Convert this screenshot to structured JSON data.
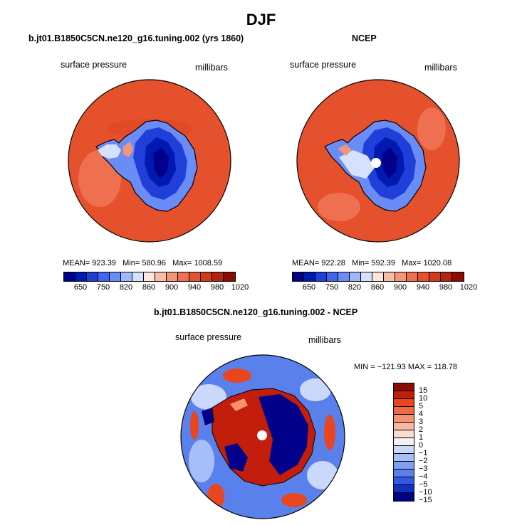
{
  "title": "DJF",
  "panels": [
    {
      "id": "model",
      "title": "b.jt01.B1850C5CN.ne120_g16.tuning.002 (yrs 1860)",
      "variable": "surface pressure",
      "units": "millibars",
      "stats": {
        "mean_label": "MEAN=",
        "mean": "923.39",
        "min_label": "Min=",
        "min": "580.96",
        "max_label": "Max=",
        "max": "1008.59"
      },
      "colorbar_ticks": [
        "650",
        "750",
        "820",
        "860",
        "900",
        "940",
        "980",
        "1020"
      ]
    },
    {
      "id": "ncep",
      "title": "NCEP",
      "variable": "surface pressure",
      "units": "millibars",
      "stats": {
        "mean_label": "MEAN=",
        "mean": "922.28",
        "min_label": "Min=",
        "min": "592.39",
        "max_label": "Max=",
        "max": "1020.08"
      },
      "colorbar_ticks": [
        "650",
        "750",
        "820",
        "860",
        "900",
        "940",
        "980",
        "1020"
      ]
    },
    {
      "id": "diff",
      "title": "b.jt01.B1850C5CN.ne120_g16.tuning.002 - NCEP",
      "variable": "surface pressure",
      "units": "millibars",
      "stats_text": "MIN = −121.93 MAX = 118.78",
      "colorbar_ticks": [
        "15",
        "10",
        "5",
        "4",
        "3",
        "2",
        "1",
        "0",
        "−1",
        "−2",
        "−3",
        "−4",
        "−5",
        "−10",
        "−15"
      ]
    }
  ],
  "colors": {
    "abs_scale": [
      "#00008a",
      "#0019b0",
      "#1f3fd8",
      "#3f66ee",
      "#6a8cf6",
      "#9fb8fb",
      "#d6e2fd",
      "#fde7dc",
      "#f8bda6",
      "#f39578",
      "#ef7050",
      "#e5512d",
      "#d13a1b",
      "#b3230e",
      "#8a0c04"
    ],
    "diff_scale": [
      "#8a0c04",
      "#c21e0b",
      "#e8461f",
      "#ef6a43",
      "#f59274",
      "#f9b79f",
      "#fcdccf",
      "#f2f2f2",
      "#c9d8fb",
      "#a7bff8",
      "#7f9ef2",
      "#5a80ec",
      "#3458e2",
      "#1230bf",
      "#00008a"
    ],
    "land_mean": "#1f3fd8",
    "ocean": "#e5512d"
  }
}
